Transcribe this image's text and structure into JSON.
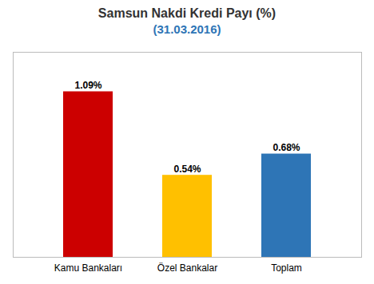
{
  "chart_data": {
    "type": "bar",
    "title": "Samsun Nakdi Kredi Payı (%)",
    "subtitle": "(31.03.2016)",
    "categories": [
      "Kamu Bankaları",
      "Özel Bankalar",
      "Toplam"
    ],
    "values": [
      1.09,
      0.54,
      0.68
    ],
    "value_labels": [
      "1.09%",
      "0.54%",
      "0.68%"
    ],
    "colors": [
      "#CC0000",
      "#FFC000",
      "#2E75B6"
    ],
    "ylim": [
      0,
      1.35
    ],
    "data_labels": true,
    "tick_labels": "x",
    "grid": false
  }
}
